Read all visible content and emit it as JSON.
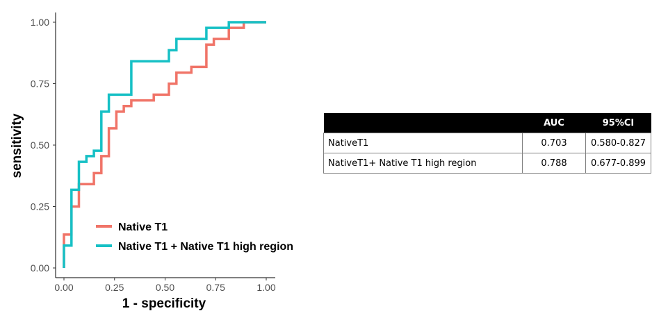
{
  "chart_data": {
    "type": "line",
    "xlabel": "1 - specificity",
    "ylabel": "sensitivity",
    "xlim": [
      0,
      1
    ],
    "ylim": [
      0,
      1
    ],
    "x_ticks": [
      "0.00",
      "0.25",
      "0.50",
      "0.75",
      "1.00"
    ],
    "y_ticks": [
      "0.00",
      "0.25",
      "0.50",
      "0.75",
      "1.00"
    ],
    "grid": false,
    "legend_position": "bottom-left inside",
    "series": [
      {
        "name": "Native T1",
        "color": "#f07468",
        "points": [
          [
            0,
            0
          ],
          [
            0,
            0.136
          ],
          [
            0.037,
            0.136
          ],
          [
            0.037,
            0.25
          ],
          [
            0.074,
            0.25
          ],
          [
            0.074,
            0.341
          ],
          [
            0.148,
            0.341
          ],
          [
            0.148,
            0.386
          ],
          [
            0.185,
            0.386
          ],
          [
            0.185,
            0.455
          ],
          [
            0.222,
            0.455
          ],
          [
            0.222,
            0.568
          ],
          [
            0.259,
            0.568
          ],
          [
            0.259,
            0.636
          ],
          [
            0.296,
            0.636
          ],
          [
            0.296,
            0.659
          ],
          [
            0.333,
            0.659
          ],
          [
            0.333,
            0.682
          ],
          [
            0.444,
            0.682
          ],
          [
            0.444,
            0.705
          ],
          [
            0.519,
            0.705
          ],
          [
            0.519,
            0.75
          ],
          [
            0.556,
            0.75
          ],
          [
            0.556,
            0.795
          ],
          [
            0.63,
            0.795
          ],
          [
            0.63,
            0.818
          ],
          [
            0.704,
            0.818
          ],
          [
            0.704,
            0.909
          ],
          [
            0.741,
            0.909
          ],
          [
            0.741,
            0.932
          ],
          [
            0.815,
            0.932
          ],
          [
            0.815,
            0.977
          ],
          [
            0.889,
            0.977
          ],
          [
            0.889,
            1
          ],
          [
            1,
            1
          ]
        ]
      },
      {
        "name": "Native T1 + Native T1 high region",
        "color": "#16c0c5",
        "points": [
          [
            0,
            0
          ],
          [
            0,
            0.091
          ],
          [
            0.037,
            0.091
          ],
          [
            0.037,
            0.318
          ],
          [
            0.074,
            0.318
          ],
          [
            0.074,
            0.432
          ],
          [
            0.111,
            0.432
          ],
          [
            0.111,
            0.455
          ],
          [
            0.148,
            0.455
          ],
          [
            0.148,
            0.477
          ],
          [
            0.185,
            0.477
          ],
          [
            0.185,
            0.636
          ],
          [
            0.222,
            0.636
          ],
          [
            0.222,
            0.705
          ],
          [
            0.333,
            0.705
          ],
          [
            0.333,
            0.841
          ],
          [
            0.519,
            0.841
          ],
          [
            0.519,
            0.886
          ],
          [
            0.556,
            0.886
          ],
          [
            0.556,
            0.932
          ],
          [
            0.704,
            0.932
          ],
          [
            0.704,
            0.977
          ],
          [
            0.815,
            0.977
          ],
          [
            0.815,
            1
          ],
          [
            1,
            1
          ]
        ]
      }
    ]
  },
  "table": {
    "headers": [
      "",
      "AUC",
      "95%CI"
    ],
    "rows": [
      {
        "label": "NativeT1",
        "auc": "0.703",
        "ci": "0.580-0.827"
      },
      {
        "label": "NativeT1+ Native T1 high region",
        "auc": "0.788",
        "ci": "0.677-0.899"
      }
    ]
  },
  "legend": {
    "items": [
      {
        "label": "Native T1",
        "color": "#f07468"
      },
      {
        "label": "Native T1 + Native T1 high region",
        "color": "#16c0c5"
      }
    ]
  }
}
